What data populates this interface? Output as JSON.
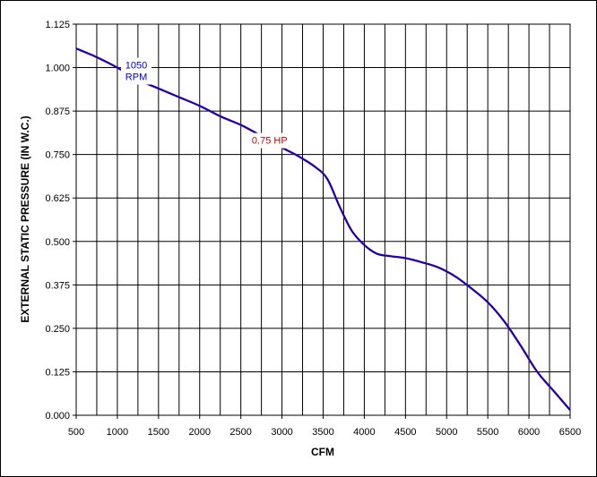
{
  "chart_data": {
    "type": "line",
    "title": "",
    "xlabel": "CFM",
    "ylabel": "EXTERNAL STATIC PRESSURE (IN W.C.)",
    "xlim": [
      500,
      6500
    ],
    "ylim": [
      0,
      1.125
    ],
    "x_ticks": [
      "500",
      "1000",
      "1500",
      "2000",
      "2500",
      "3000",
      "3500",
      "4000",
      "4500",
      "5000",
      "5500",
      "6000",
      "6500"
    ],
    "y_ticks": [
      "0.000",
      "0.125",
      "0.250",
      "0.375",
      "0.500",
      "0.625",
      "0.750",
      "0.875",
      "1.000",
      "1.125"
    ],
    "grid": true,
    "series": [
      {
        "color": "#0000cc",
        "x": [
          500,
          750,
          1000,
          1250,
          1500,
          1750,
          2000,
          2250,
          2500,
          2700,
          3000,
          3200,
          3400,
          3550,
          3700,
          3850,
          4000,
          4150,
          4300,
          4500,
          4700,
          4900,
          5100,
          5300,
          5500,
          5700,
          5900,
          6100,
          6300,
          6500
        ],
        "y": [
          1.055,
          1.03,
          1.0,
          0.965,
          0.94,
          0.915,
          0.89,
          0.86,
          0.835,
          0.81,
          0.77,
          0.745,
          0.715,
          0.68,
          0.6,
          0.53,
          0.49,
          0.465,
          0.458,
          0.452,
          0.44,
          0.425,
          0.4,
          0.365,
          0.325,
          0.27,
          0.2,
          0.125,
          0.07,
          0.015
        ]
      }
    ],
    "annotations": [
      {
        "lines": [
          "1050",
          "RPM"
        ],
        "x": 1230,
        "y": 0.99,
        "color": "#0000cc"
      },
      {
        "lines": [
          "0.75 HP"
        ],
        "x": 2850,
        "y": 0.79,
        "color": "#cc0000"
      }
    ]
  }
}
